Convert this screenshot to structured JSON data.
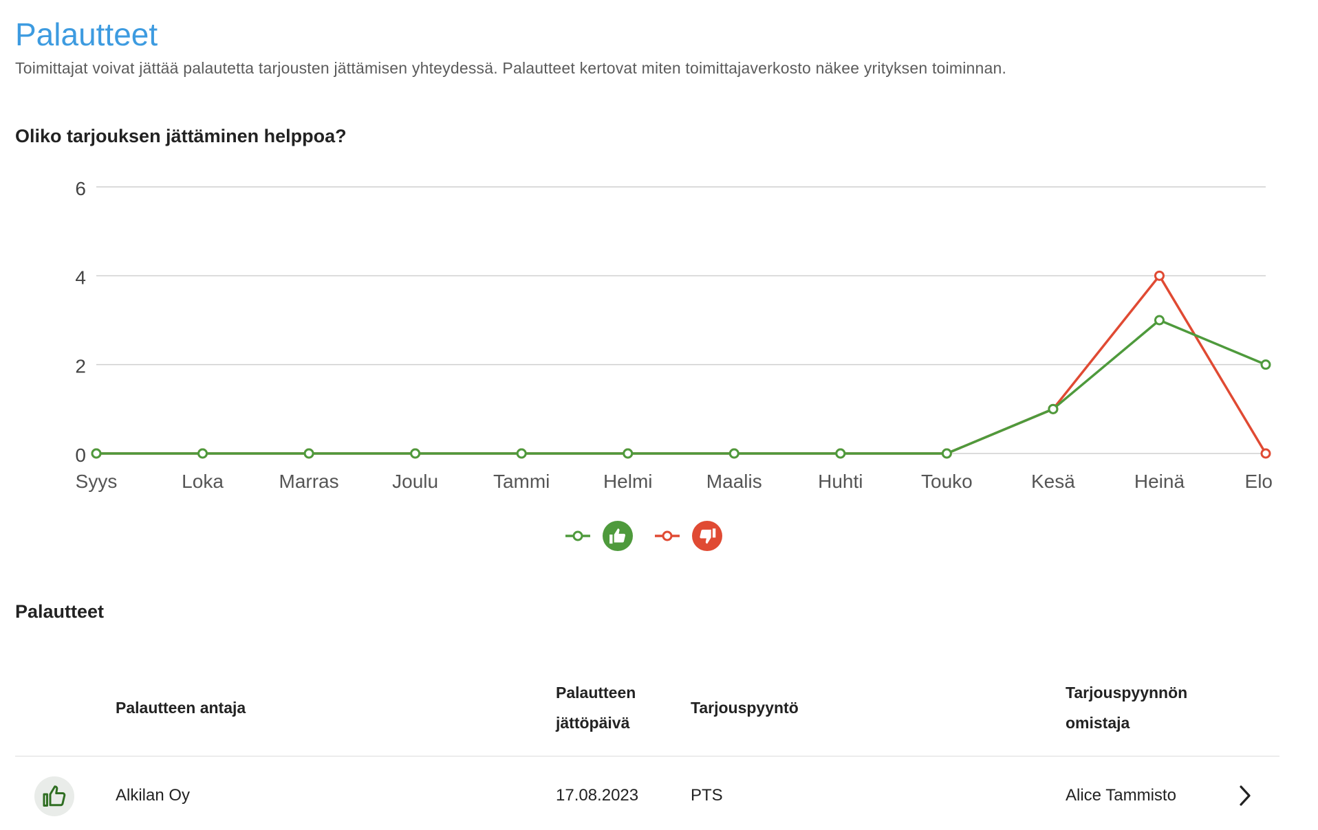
{
  "header": {
    "title": "Palautteet",
    "subtitle": "Toimittajat voivat jättää palautetta tarjousten jättämisen yhteydessä. Palautteet kertovat miten toimittajaverkosto näkee yrityksen toiminnan."
  },
  "chart_section": {
    "question": "Oliko tarjouksen jättäminen helppoa?"
  },
  "chart_data": {
    "type": "line",
    "categories": [
      "Syys",
      "Loka",
      "Marras",
      "Joulu",
      "Tammi",
      "Helmi",
      "Maalis",
      "Huhti",
      "Touko",
      "Kesä",
      "Heinä",
      "Elo"
    ],
    "series": [
      {
        "name": "thumbs-up",
        "color": "#4e9a3c",
        "icon": "thumb-up-icon",
        "values": [
          0,
          0,
          0,
          0,
          0,
          0,
          0,
          0,
          0,
          1,
          3,
          2
        ]
      },
      {
        "name": "thumbs-down",
        "color": "#e04a33",
        "icon": "thumb-down-icon",
        "values": [
          0,
          0,
          0,
          0,
          0,
          0,
          0,
          0,
          0,
          1,
          4,
          0
        ]
      }
    ],
    "y_ticks": [
      0,
      2,
      4,
      6
    ],
    "ylim": [
      0,
      6
    ],
    "grid": true,
    "legend_position": "bottom-center"
  },
  "feedback_section": {
    "title": "Palautteet",
    "columns": [
      "Palautteen antaja",
      "Palautteen\njättöpäivä",
      "Tarjouspyyntö",
      "Tarjouspyynnön\nomistaja"
    ],
    "rows": [
      {
        "type": "positive",
        "icon": "thumb-up-icon",
        "giver": "Alkilan Oy",
        "date": "17.08.2023",
        "request": "PTS",
        "owner": "Alice Tammisto"
      }
    ]
  },
  "colors": {
    "accent": "#3d9be0",
    "positive": "#4e9a3c",
    "negative": "#e04a33",
    "grid": "#cfcfcf"
  }
}
